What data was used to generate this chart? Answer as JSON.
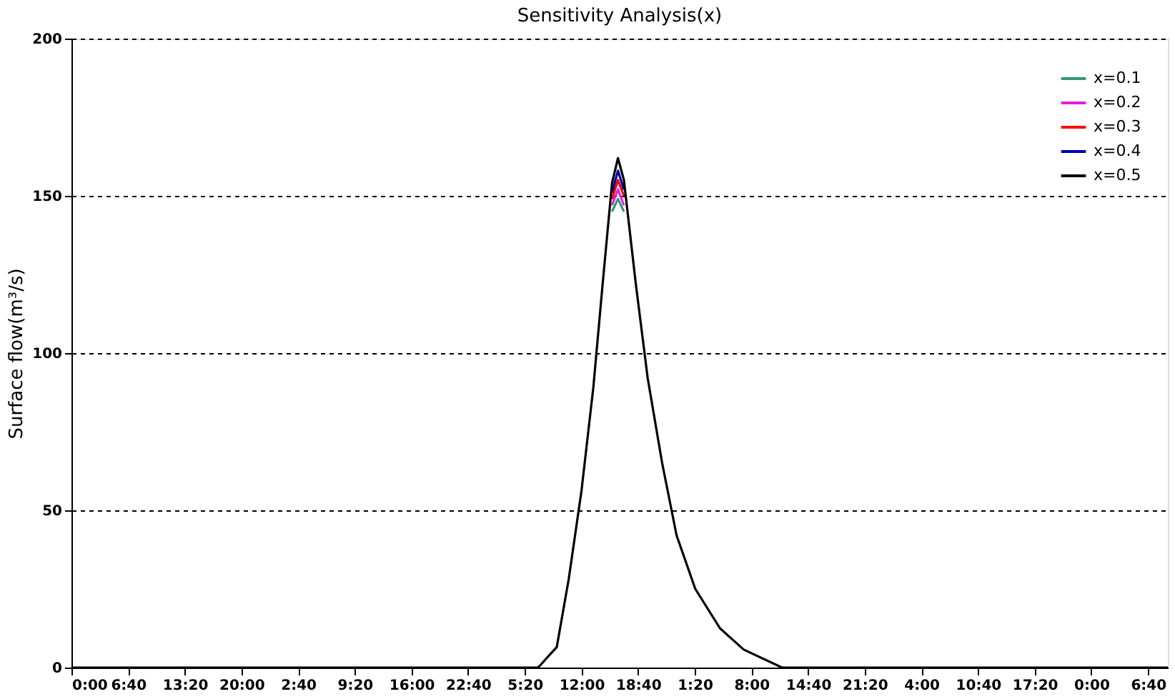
{
  "chart_data": {
    "type": "line",
    "title": "Sensitivity Analysis(x)",
    "ylabel": "Surface flow(m³/s)",
    "x": [
      "2000-01-01T00:00",
      "2000-01-03T06:54",
      "2000-01-03T09:06",
      "2000-01-03T10:30",
      "2000-01-03T12:00",
      "2000-01-03T13:24",
      "2000-01-03T14:30",
      "2000-01-03T15:36",
      "2000-01-03T16:18",
      "2000-01-03T17:00",
      "2000-01-03T18:24",
      "2000-01-03T19:48",
      "2000-01-03T21:30",
      "2000-01-03T23:12",
      "2000-01-04T01:24",
      "2000-01-04T04:18",
      "2000-01-04T07:06",
      "2000-01-04T11:36",
      "2000-01-06T09:00"
    ],
    "series": [
      {
        "name": "x=0.1",
        "color": "#339977",
        "values": [
          null,
          null,
          null,
          null,
          null,
          null,
          null,
          145,
          149,
          145,
          null,
          null,
          null,
          null,
          null,
          null,
          null,
          null,
          null
        ]
      },
      {
        "name": "x=0.2",
        "color": "#e020e0",
        "values": [
          null,
          null,
          null,
          null,
          null,
          null,
          null,
          147,
          152,
          147,
          null,
          null,
          null,
          null,
          null,
          null,
          null,
          null,
          null
        ]
      },
      {
        "name": "x=0.3",
        "color": "#ff0000",
        "values": [
          null,
          null,
          null,
          null,
          null,
          null,
          null,
          149,
          155,
          150,
          null,
          null,
          null,
          null,
          null,
          null,
          null,
          null,
          null
        ]
      },
      {
        "name": "x=0.4",
        "color": "#0000aa",
        "values": [
          null,
          null,
          null,
          null,
          null,
          null,
          null,
          151,
          158,
          152,
          null,
          null,
          null,
          null,
          null,
          null,
          null,
          null,
          null
        ]
      },
      {
        "name": "x=0.5",
        "color": "#000000",
        "values": [
          0,
          0,
          6.5,
          28,
          56,
          89,
          122,
          154,
          162,
          155,
          122,
          92,
          65,
          42,
          25,
          12.5,
          5.7,
          0,
          0
        ]
      }
    ],
    "xlim": [
      "2000-01-01T00:00",
      "2000-01-06T09:00"
    ],
    "xticks": [
      {
        "value": "2000-01-01T00:00",
        "label": "0:00"
      },
      {
        "value": "2000-01-01T06:40",
        "label": "6:40"
      },
      {
        "value": "2000-01-01T13:20",
        "label": "13:20"
      },
      {
        "value": "2000-01-01T20:00",
        "label": "20:00"
      },
      {
        "value": "2000-01-02T02:40",
        "label": "2:40"
      },
      {
        "value": "2000-01-02T09:20",
        "label": "9:20"
      },
      {
        "value": "2000-01-02T16:00",
        "label": "16:00"
      },
      {
        "value": "2000-01-02T22:40",
        "label": "22:40"
      },
      {
        "value": "2000-01-03T05:20",
        "label": "5:20"
      },
      {
        "value": "2000-01-03T12:00",
        "label": "12:00"
      },
      {
        "value": "2000-01-03T18:40",
        "label": "18:40"
      },
      {
        "value": "2000-01-04T01:20",
        "label": "1:20"
      },
      {
        "value": "2000-01-04T08:00",
        "label": "8:00"
      },
      {
        "value": "2000-01-04T14:40",
        "label": "14:40"
      },
      {
        "value": "2000-01-04T21:20",
        "label": "21:20"
      },
      {
        "value": "2000-01-05T04:00",
        "label": "4:00"
      },
      {
        "value": "2000-01-05T10:40",
        "label": "10:40"
      },
      {
        "value": "2000-01-05T17:20",
        "label": "17:20"
      },
      {
        "value": "2000-01-06T00:00",
        "label": "0:00"
      },
      {
        "value": "2000-01-06T06:40",
        "label": "6:40"
      }
    ],
    "ylim": [
      0,
      200
    ],
    "yticks": [
      0,
      50,
      100,
      150,
      200
    ],
    "grid": "y",
    "legend": "top right",
    "line_style": "solid",
    "marker": "none"
  }
}
